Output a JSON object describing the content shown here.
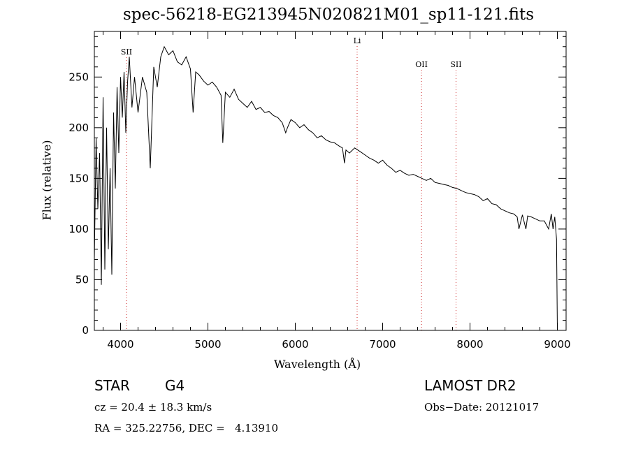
{
  "chart_data": {
    "type": "line",
    "title": "spec-56218-EG213945N020821M01_sp11-121.fits",
    "xlabel": "Wavelength (Å)",
    "ylabel": "Flux (relative)",
    "xlim": [
      3700,
      9100
    ],
    "ylim": [
      0,
      295
    ],
    "xticks": [
      4000,
      5000,
      6000,
      7000,
      8000,
      9000
    ],
    "yticks": [
      0,
      50,
      100,
      150,
      200,
      250
    ],
    "grid": false,
    "line_color": "#000000",
    "marker_color": "#cc2222",
    "series": [
      {
        "x": [
          3700,
          3720,
          3740,
          3760,
          3780,
          3800,
          3820,
          3840,
          3860,
          3880,
          3900,
          3920,
          3940,
          3960,
          3980,
          4000,
          4020,
          4040,
          4060,
          4080,
          4100,
          4130,
          4160,
          4200,
          4250,
          4300,
          4340,
          4380,
          4420,
          4460,
          4500,
          4550,
          4600,
          4650,
          4700,
          4750,
          4800,
          4830,
          4860,
          4900,
          4950,
          5000,
          5050,
          5100,
          5150,
          5170,
          5200,
          5250,
          5300,
          5350,
          5400,
          5450,
          5500,
          5550,
          5600,
          5650,
          5700,
          5750,
          5800,
          5850,
          5870,
          5890,
          5910,
          5950,
          6000,
          6050,
          6100,
          6150,
          6200,
          6250,
          6300,
          6350,
          6400,
          6450,
          6500,
          6540,
          6563,
          6580,
          6620,
          6680,
          6750,
          6800,
          6850,
          6900,
          6950,
          7000,
          7050,
          7100,
          7150,
          7200,
          7250,
          7300,
          7350,
          7400,
          7450,
          7500,
          7550,
          7600,
          7650,
          7700,
          7750,
          7800,
          7850,
          7900,
          7950,
          8000,
          8050,
          8100,
          8150,
          8200,
          8250,
          8300,
          8350,
          8400,
          8450,
          8500,
          8540,
          8560,
          8600,
          8640,
          8660,
          8700,
          8750,
          8800,
          8850,
          8900,
          8930,
          8950,
          8970,
          8990,
          9000
        ],
        "y": [
          70,
          190,
          120,
          175,
          45,
          230,
          60,
          200,
          80,
          160,
          55,
          215,
          140,
          240,
          175,
          250,
          210,
          255,
          195,
          245,
          270,
          220,
          250,
          215,
          250,
          235,
          160,
          260,
          240,
          270,
          280,
          272,
          276,
          265,
          262,
          270,
          258,
          215,
          255,
          252,
          246,
          242,
          245,
          240,
          232,
          185,
          235,
          230,
          238,
          228,
          224,
          220,
          226,
          218,
          220,
          215,
          216,
          212,
          210,
          205,
          200,
          195,
          200,
          208,
          205,
          200,
          203,
          198,
          195,
          190,
          192,
          188,
          186,
          185,
          182,
          180,
          165,
          178,
          175,
          180,
          176,
          173,
          170,
          168,
          165,
          168,
          163,
          160,
          156,
          158,
          155,
          153,
          154,
          152,
          150,
          148,
          150,
          146,
          145,
          144,
          143,
          141,
          140,
          138,
          136,
          135,
          134,
          132,
          128,
          130,
          125,
          124,
          120,
          118,
          116,
          115,
          112,
          100,
          114,
          100,
          113,
          112,
          110,
          108,
          108,
          100,
          115,
          100,
          112,
          90,
          0
        ]
      }
    ],
    "lines": [
      {
        "label": "SII",
        "x": 4068
      },
      {
        "label": "Li",
        "x": 6708
      },
      {
        "label": "OII",
        "x": 7445
      },
      {
        "label": "SII",
        "x": 7840
      }
    ]
  },
  "info": {
    "class": "STAR",
    "subclass": "G4",
    "survey": "LAMOST DR2",
    "cz": "cz = 20.4 ± 18.3 km/s",
    "obs_date": "Obs−Date: 20121017",
    "coords": "RA = 325.22756, DEC =   4.13910"
  }
}
